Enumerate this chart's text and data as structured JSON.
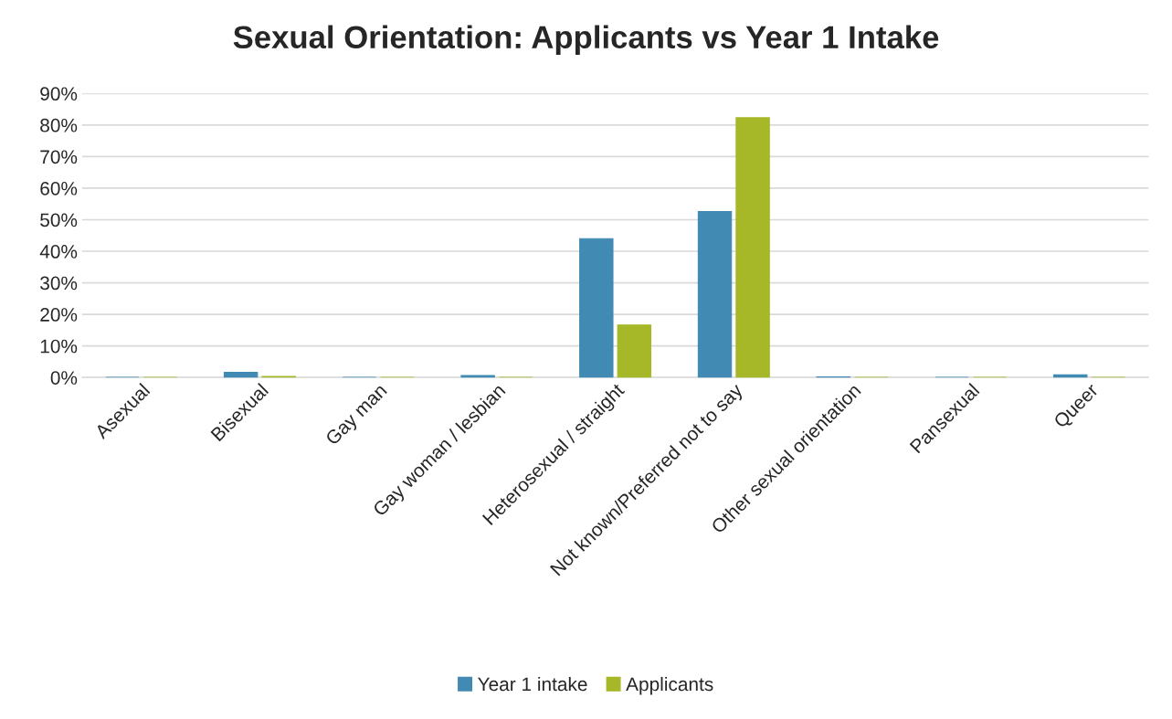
{
  "chart_data": {
    "type": "bar",
    "title": "Sexual Orientation: Applicants vs Year 1 Intake",
    "categories": [
      "Asexual",
      "Bisexual",
      "Gay man",
      "Gay woman / lesbian",
      "Heterosexual / straight",
      "Not known/Preferred not to say",
      "Other sexual orientation",
      "Pansexual",
      "Queer"
    ],
    "series": [
      {
        "name": "Year 1 intake",
        "color": "#418ab3",
        "values": [
          0,
          1.6,
          0,
          0.6,
          44,
          52.6,
          0.2,
          0,
          0.8
        ]
      },
      {
        "name": "Applicants",
        "color": "#a6b727",
        "values": [
          0,
          0.3,
          0,
          0,
          16.6,
          82.3,
          0,
          0,
          0
        ]
      }
    ],
    "ylim": [
      0,
      90
    ],
    "yticks": [
      {
        "value": 0,
        "label": "0%"
      },
      {
        "value": 10,
        "label": "10%"
      },
      {
        "value": 20,
        "label": "20%"
      },
      {
        "value": 30,
        "label": "30%"
      },
      {
        "value": 40,
        "label": "40%"
      },
      {
        "value": 50,
        "label": "50%"
      },
      {
        "value": 60,
        "label": "60%"
      },
      {
        "value": 70,
        "label": "70%"
      },
      {
        "value": 80,
        "label": "80%"
      },
      {
        "value": 90,
        "label": "90%"
      }
    ],
    "grid": "y",
    "legend": "bottom"
  }
}
